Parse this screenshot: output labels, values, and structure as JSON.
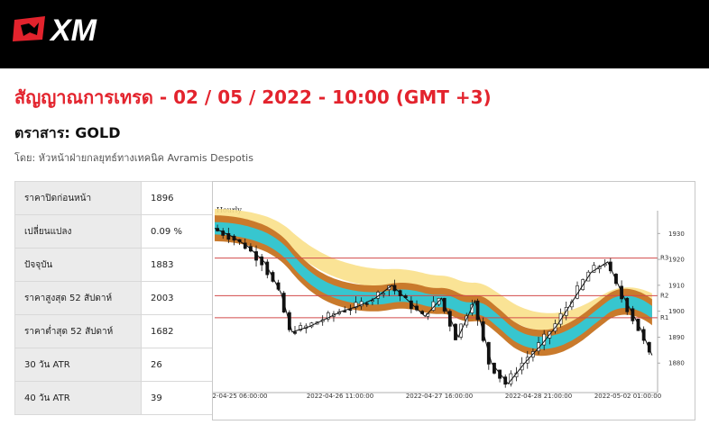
{
  "brand": {
    "logo_text": "XM",
    "colors": {
      "header_bg": "#000000",
      "accent_red": "#e3232d"
    }
  },
  "signal": {
    "title": "สัญญาณการเทรด - 02 / 05 / 2022 - 10:00 (GMT +3)",
    "instrument": "ตราสาร: GOLD",
    "author": "โดย: หัวหน้าฝ่ายกลยุทธ์ทางเทคนิค Avramis Despotis"
  },
  "stats": [
    {
      "label": "ราคาปิดก่อนหน้า",
      "value": "1896"
    },
    {
      "label": "เปลี่ยนแปลง",
      "value": "0.09 %"
    },
    {
      "label": "ปัจจุบัน",
      "value": "1883"
    },
    {
      "label": "ราคาสูงสุด 52 สัปดาห์",
      "value": "2003"
    },
    {
      "label": "ราคาต่ำสุด 52 สัปดาห์",
      "value": "1682"
    },
    {
      "label": "30 วัน ATR",
      "value": "26"
    },
    {
      "label": "40 วัน ATR",
      "value": "39"
    }
  ],
  "chart_data": {
    "type": "line",
    "title": "Hourly",
    "x_tick_labels": [
      "2-04-25 06:00:00",
      "2022-04-26 11:00:00",
      "2022-04-27 16:00:00",
      "2022-04-28 21:00:00",
      "2022-05-02 01:00:00"
    ],
    "y_ticks": [
      1880,
      1890,
      1900,
      1910,
      1920,
      1930
    ],
    "ylim": [
      1870,
      1936
    ],
    "levels": [
      {
        "name": "R3",
        "value": 1920.5
      },
      {
        "name": "R2",
        "value": 1906
      },
      {
        "name": "R1",
        "value": 1897.5
      }
    ],
    "series": [
      {
        "x": [
          0,
          3,
          6,
          9,
          12,
          14,
          17,
          20,
          23,
          26,
          29,
          32,
          35,
          38,
          41,
          44,
          47,
          50,
          53,
          56,
          59,
          62,
          65,
          68,
          71,
          74,
          77,
          79
        ],
        "values": [
          1932,
          1929,
          1925,
          1919,
          1907,
          1892,
          1894,
          1897,
          1900,
          1902,
          1905,
          1910,
          1904,
          1898,
          1905,
          1890,
          1904,
          1880,
          1872,
          1880,
          1887,
          1895,
          1905,
          1915,
          1919,
          1905,
          1893,
          1883
        ]
      }
    ],
    "colors": {
      "grid_line": "#d24a4a",
      "band_outer": "#c97a2c",
      "band_inner": "#37c6cf",
      "band_yellow": "#f9e08a",
      "candle": "#111111"
    }
  }
}
